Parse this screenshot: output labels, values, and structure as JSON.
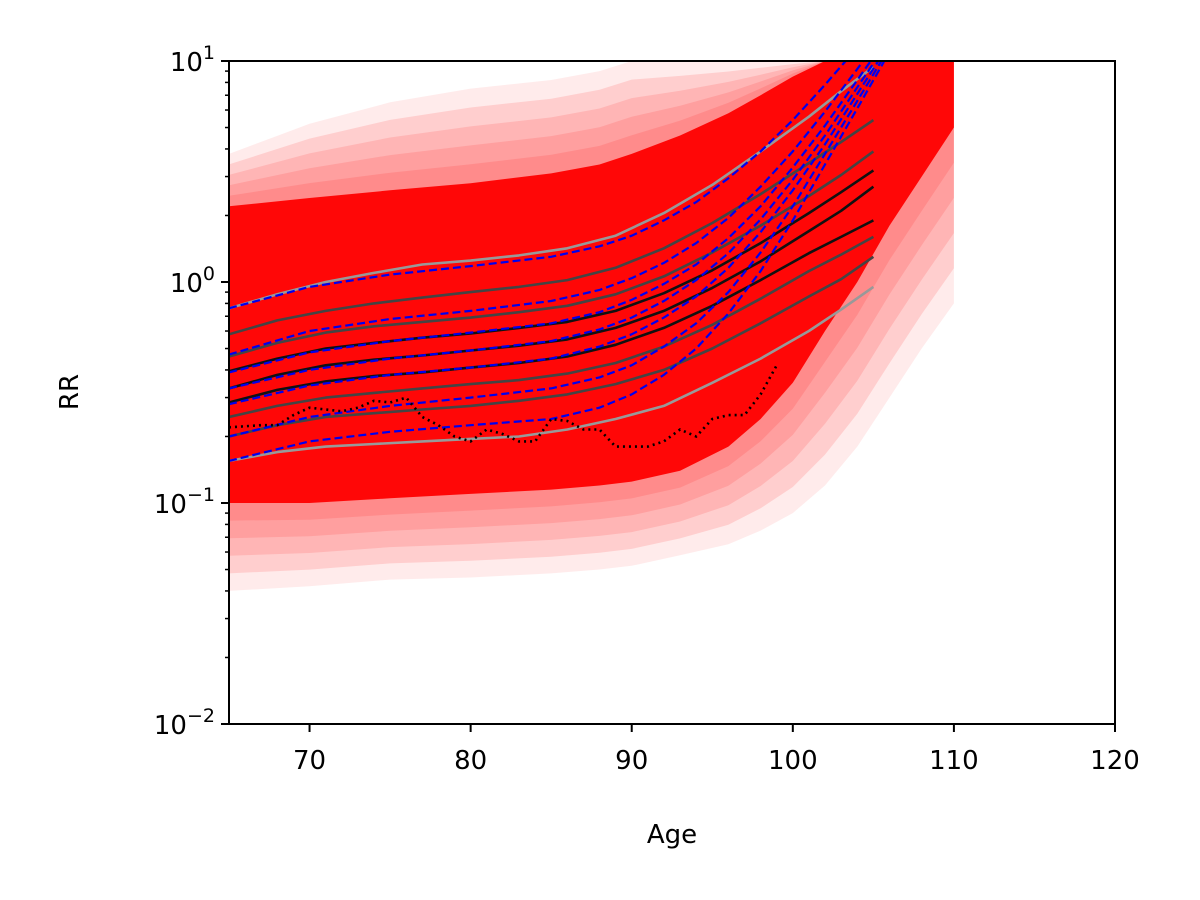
{
  "chart_data": {
    "type": "line",
    "xlabel": "Age",
    "ylabel": "RR",
    "xlim": [
      65,
      120
    ],
    "ylim": [
      0.01,
      10
    ],
    "yscale": "log",
    "grid": false,
    "legend": "none",
    "x_ticks": [
      {
        "value": 70,
        "label": "70"
      },
      {
        "value": 80,
        "label": "80"
      },
      {
        "value": 90,
        "label": "90"
      },
      {
        "value": 100,
        "label": "100"
      },
      {
        "value": 110,
        "label": "110"
      },
      {
        "value": 120,
        "label": "120"
      }
    ],
    "y_ticks": [
      {
        "value": 0.01,
        "base": "10",
        "exp": "−2"
      },
      {
        "value": 0.1,
        "base": "10",
        "exp": "−1"
      },
      {
        "value": 1,
        "base": "10",
        "exp": "0"
      },
      {
        "value": 10,
        "base": "10",
        "exp": "1"
      }
    ],
    "colors": {
      "simulation": "#ff0000",
      "quantile_dark": "#111111",
      "quantile_mid": "#444444",
      "quantile_light": "#999999",
      "fitted": "#0000ee",
      "observed": "#000000"
    },
    "simulation_band": {
      "x": [
        65,
        70,
        75,
        80,
        85,
        88,
        90,
        93,
        96,
        98,
        100,
        102,
        104,
        106,
        108,
        110
      ],
      "outer_lower": [
        0.04,
        0.042,
        0.045,
        0.046,
        0.048,
        0.05,
        0.052,
        0.058,
        0.065,
        0.075,
        0.09,
        0.12,
        0.18,
        0.3,
        0.5,
        0.8
      ],
      "outer_upper": [
        3.8,
        5.2,
        6.5,
        7.5,
        8.2,
        9,
        10,
        10,
        10,
        10,
        10,
        10,
        10,
        10,
        10,
        10
      ],
      "inner_lower": [
        0.1,
        0.1,
        0.105,
        0.11,
        0.115,
        0.12,
        0.125,
        0.14,
        0.18,
        0.24,
        0.35,
        0.6,
        1.0,
        1.8,
        3,
        5
      ],
      "inner_upper": [
        2.2,
        2.4,
        2.6,
        2.8,
        3.1,
        3.4,
        3.8,
        4.6,
        5.8,
        7,
        8.5,
        10,
        10,
        10,
        10,
        10
      ]
    },
    "quantile_lines": {
      "x": [
        65,
        68,
        71,
        74,
        77,
        80,
        83,
        86,
        89,
        92,
        95,
        98,
        101,
        103,
        105
      ],
      "series": [
        {
          "tone": "light",
          "values": [
            0.76,
            0.88,
            1.0,
            1.1,
            1.2,
            1.25,
            1.32,
            1.42,
            1.62,
            2.05,
            2.75,
            3.9,
            5.6,
            7.3,
            9.4
          ]
        },
        {
          "tone": "mid",
          "values": [
            0.58,
            0.67,
            0.74,
            0.8,
            0.85,
            0.9,
            0.95,
            1.02,
            1.16,
            1.42,
            1.85,
            2.5,
            3.45,
            4.3,
            5.4
          ]
        },
        {
          "tone": "mid",
          "values": [
            0.46,
            0.53,
            0.59,
            0.63,
            0.66,
            0.69,
            0.73,
            0.78,
            0.88,
            1.06,
            1.36,
            1.8,
            2.45,
            3.05,
            3.9
          ]
        },
        {
          "tone": "dark",
          "values": [
            0.395,
            0.45,
            0.5,
            0.53,
            0.56,
            0.585,
            0.62,
            0.66,
            0.74,
            0.89,
            1.13,
            1.5,
            2.05,
            2.55,
            3.2
          ]
        },
        {
          "tone": "dark",
          "values": [
            0.33,
            0.38,
            0.42,
            0.445,
            0.465,
            0.49,
            0.515,
            0.55,
            0.62,
            0.74,
            0.94,
            1.24,
            1.7,
            2.1,
            2.7
          ]
        },
        {
          "tone": "dark",
          "values": [
            0.285,
            0.325,
            0.355,
            0.375,
            0.39,
            0.41,
            0.43,
            0.46,
            0.52,
            0.62,
            0.78,
            1.02,
            1.35,
            1.6,
            1.9
          ]
        },
        {
          "tone": "mid",
          "values": [
            0.245,
            0.275,
            0.3,
            0.315,
            0.33,
            0.345,
            0.36,
            0.385,
            0.43,
            0.51,
            0.64,
            0.84,
            1.12,
            1.33,
            1.6
          ]
        },
        {
          "tone": "mid",
          "values": [
            0.2,
            0.225,
            0.245,
            0.255,
            0.265,
            0.275,
            0.29,
            0.31,
            0.345,
            0.4,
            0.5,
            0.65,
            0.86,
            1.03,
            1.3
          ]
        },
        {
          "tone": "light",
          "values": [
            0.155,
            0.17,
            0.18,
            0.185,
            0.19,
            0.195,
            0.2,
            0.215,
            0.24,
            0.275,
            0.35,
            0.45,
            0.6,
            0.75,
            0.95
          ]
        }
      ]
    },
    "fitted_lines": {
      "x": [
        65,
        70,
        75,
        80,
        85,
        88,
        90,
        92,
        94,
        96,
        98,
        100,
        102,
        104,
        106,
        108
      ],
      "series": [
        {
          "values": [
            0.76,
            0.95,
            1.08,
            1.18,
            1.3,
            1.45,
            1.62,
            1.9,
            2.3,
            2.95,
            3.9,
            5.4,
            7.8,
            11.5,
            17,
            25
          ]
        },
        {
          "values": [
            0.47,
            0.6,
            0.68,
            0.74,
            0.82,
            0.92,
            1.04,
            1.22,
            1.5,
            1.95,
            2.7,
            3.9,
            5.9,
            9.2,
            14.5,
            23
          ]
        },
        {
          "values": [
            0.39,
            0.48,
            0.54,
            0.59,
            0.65,
            0.73,
            0.83,
            0.98,
            1.2,
            1.58,
            2.2,
            3.3,
            5.1,
            8.2,
            13.2,
            21
          ]
        },
        {
          "values": [
            0.33,
            0.4,
            0.45,
            0.49,
            0.54,
            0.61,
            0.69,
            0.82,
            1.02,
            1.35,
            1.92,
            2.9,
            4.6,
            7.6,
            12.5,
            20.5
          ]
        },
        {
          "values": [
            0.28,
            0.34,
            0.38,
            0.41,
            0.45,
            0.51,
            0.58,
            0.69,
            0.86,
            1.16,
            1.68,
            2.6,
            4.2,
            7.1,
            12,
            20
          ]
        },
        {
          "values": [
            0.2,
            0.245,
            0.275,
            0.3,
            0.33,
            0.37,
            0.42,
            0.51,
            0.65,
            0.9,
            1.36,
            2.2,
            3.8,
            6.6,
            11.5,
            19.5
          ]
        },
        {
          "values": [
            0.155,
            0.19,
            0.21,
            0.225,
            0.24,
            0.27,
            0.31,
            0.38,
            0.5,
            0.72,
            1.12,
            1.9,
            3.4,
            6.1,
            11,
            19
          ]
        }
      ]
    },
    "observed_line": {
      "x": [
        65,
        67,
        68,
        69,
        70,
        71,
        72,
        73,
        74,
        75,
        76,
        77,
        78,
        79,
        80,
        81,
        82,
        83,
        84,
        85,
        86,
        87,
        88,
        89,
        90,
        91,
        92,
        93,
        94,
        95,
        96,
        97,
        98,
        99
      ],
      "values": [
        0.22,
        0.225,
        0.225,
        0.25,
        0.27,
        0.265,
        0.26,
        0.27,
        0.29,
        0.285,
        0.3,
        0.245,
        0.225,
        0.2,
        0.19,
        0.215,
        0.205,
        0.19,
        0.19,
        0.24,
        0.235,
        0.215,
        0.215,
        0.18,
        0.18,
        0.18,
        0.19,
        0.215,
        0.2,
        0.24,
        0.25,
        0.25,
        0.31,
        0.42
      ]
    }
  }
}
